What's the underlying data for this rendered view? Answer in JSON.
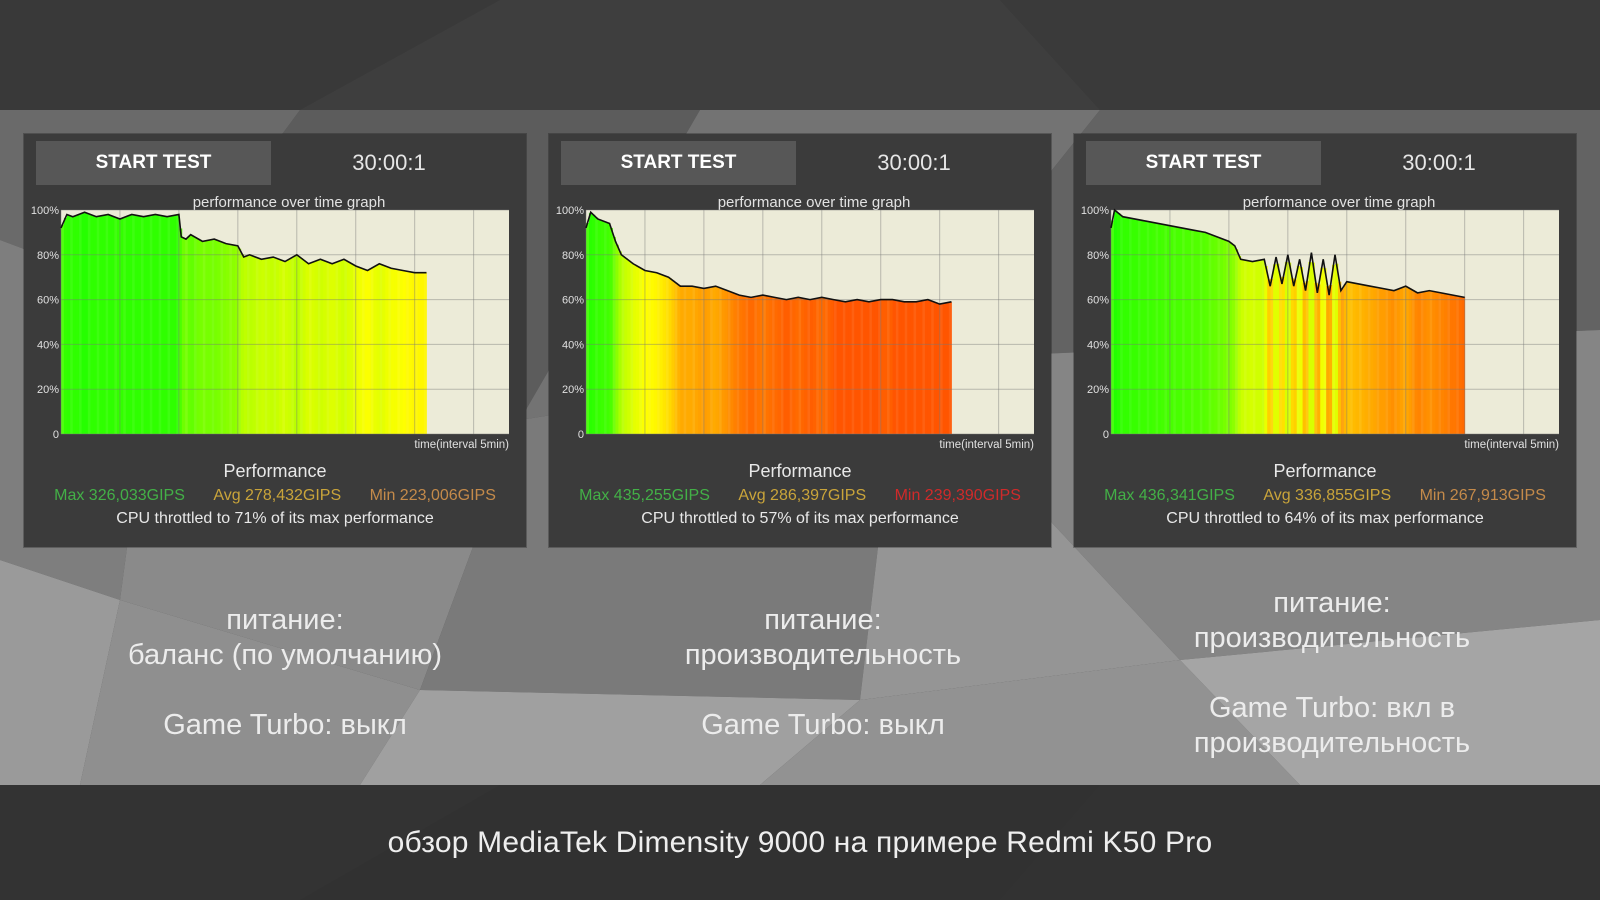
{
  "footer": "обзор MediaTek Dimensity 9000 на примере Redmi K50 Pro",
  "panels": [
    {
      "start_label": "START TEST",
      "timer": "30:00:1",
      "graph_title": "performance over time graph",
      "perf_title": "Performance",
      "max": "Max 326,033GIPS",
      "avg": "Avg 278,432GIPS",
      "min": "Min 223,006GIPS",
      "min_color": "#c48a4a",
      "throttle": "CPU throttled to 71% of its max performance",
      "caption": [
        "питание:",
        "баланс (по умолчанию)",
        "",
        "Game Turbo: выкл"
      ]
    },
    {
      "start_label": "START TEST",
      "timer": "30:00:1",
      "graph_title": "performance over time graph",
      "perf_title": "Performance",
      "max": "Max 435,255GIPS",
      "avg": "Avg 286,397GIPS",
      "min": "Min 239,390GIPS",
      "min_color": "#d02a2a",
      "throttle": "CPU throttled to 57% of its max performance",
      "caption": [
        "питание:",
        "производительность",
        "",
        "Game Turbo: выкл"
      ]
    },
    {
      "start_label": "START TEST",
      "timer": "30:00:1",
      "graph_title": "performance over time graph",
      "perf_title": "Performance",
      "max": "Max 436,341GIPS",
      "avg": "Avg 336,855GIPS",
      "min": "Min 267,913GIPS",
      "min_color": "#c48a4a",
      "throttle": "CPU throttled to 64% of its max performance",
      "caption": [
        "питание:",
        "производительность",
        "",
        "Game Turbo: вкл в",
        "производительность"
      ]
    }
  ],
  "chart_data": [
    {
      "type": "area",
      "title": "performance over time graph",
      "xlabel": "time(interval 5min)",
      "ylabel": "",
      "yticks": [
        "0",
        "20%",
        "40%",
        "60%",
        "80%",
        "100%"
      ],
      "ylim": [
        0,
        100
      ],
      "x_range": [
        0,
        38
      ],
      "grid": true,
      "series": [
        {
          "x": [
            0,
            0.5,
            1,
            2,
            3,
            4,
            5,
            6,
            7,
            8,
            9,
            10,
            10.2,
            10.6,
            11,
            12,
            13,
            14,
            15,
            15.5,
            16,
            17,
            18,
            19,
            20,
            21,
            22,
            23,
            24,
            25,
            26,
            27,
            28,
            29,
            30,
            31
          ],
          "y": [
            92,
            98,
            97,
            99,
            97,
            98,
            96,
            98,
            97,
            98,
            97,
            98,
            88,
            87,
            89,
            86,
            87,
            85,
            84,
            79,
            80,
            78,
            79,
            77,
            80,
            76,
            78,
            76,
            78,
            75,
            73,
            76,
            74,
            73,
            72,
            72
          ]
        }
      ]
    },
    {
      "type": "area",
      "title": "performance over time graph",
      "xlabel": "time(interval 5min)",
      "ylabel": "",
      "yticks": [
        "0",
        "20%",
        "40%",
        "60%",
        "80%",
        "100%"
      ],
      "ylim": [
        0,
        100
      ],
      "x_range": [
        0,
        38
      ],
      "grid": true,
      "series": [
        {
          "x": [
            0,
            0.4,
            1,
            2,
            2.5,
            3,
            4,
            5,
            6,
            7,
            8,
            9,
            10,
            11,
            12,
            13,
            14,
            15,
            16,
            17,
            18,
            19,
            20,
            21,
            22,
            23,
            24,
            25,
            26,
            27,
            28,
            29,
            30,
            31
          ],
          "y": [
            92,
            99,
            96,
            94,
            86,
            80,
            76,
            73,
            72,
            70,
            66,
            66,
            65,
            66,
            64,
            62,
            61,
            62,
            61,
            60,
            61,
            60,
            61,
            60,
            59,
            60,
            59,
            60,
            60,
            59,
            59,
            60,
            58,
            59
          ]
        }
      ]
    },
    {
      "type": "area",
      "title": "performance over time graph",
      "xlabel": "time(interval 5min)",
      "ylabel": "",
      "yticks": [
        "0",
        "20%",
        "40%",
        "60%",
        "80%",
        "100%"
      ],
      "ylim": [
        0,
        100
      ],
      "x_range": [
        0,
        38
      ],
      "grid": true,
      "series": [
        {
          "x": [
            0,
            0.3,
            1,
            2,
            3,
            4,
            5,
            6,
            7,
            8,
            9,
            10,
            10.5,
            11,
            12,
            13,
            13.5,
            14,
            14.5,
            15,
            15.5,
            16,
            16.5,
            17,
            17.5,
            18,
            18.5,
            19,
            19.5,
            20,
            21,
            22,
            23,
            24,
            25,
            26,
            27,
            28,
            29,
            30
          ],
          "y": [
            92,
            100,
            97,
            96,
            95,
            94,
            93,
            92,
            91,
            90,
            88,
            86,
            84,
            78,
            77,
            78,
            66,
            79,
            67,
            80,
            66,
            78,
            64,
            81,
            63,
            78,
            62,
            80,
            64,
            68,
            67,
            66,
            65,
            64,
            66,
            63,
            64,
            63,
            62,
            61
          ]
        }
      ]
    }
  ]
}
